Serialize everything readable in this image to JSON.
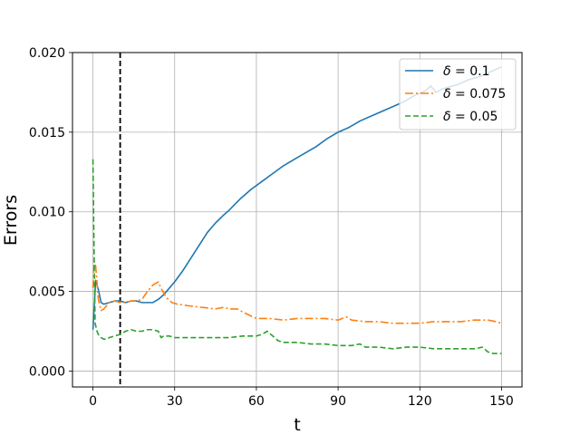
{
  "chart_data": {
    "type": "line",
    "xlabel": "t",
    "ylabel": "Errors",
    "xlim": [
      -7.5,
      157.5
    ],
    "ylim": [
      -0.001,
      0.02
    ],
    "xticks": [
      0,
      30,
      60,
      90,
      120,
      150
    ],
    "xtick_labels": [
      "0",
      "30",
      "60",
      "90",
      "120",
      "150"
    ],
    "yticks": [
      0.0,
      0.005,
      0.01,
      0.015,
      0.02
    ],
    "ytick_labels": [
      "0.000",
      "0.005",
      "0.010",
      "0.015",
      "0.020"
    ],
    "grid": true,
    "legend_position": "top-right",
    "vline_x": 10,
    "series": [
      {
        "name": "δ = 0.1",
        "label_var": "δ",
        "label_val": "0.1",
        "color": "#1f77b4",
        "dash": "solid",
        "x": [
          0,
          1,
          2,
          3,
          4,
          6,
          8,
          10,
          12,
          14,
          16,
          18,
          20,
          22,
          24,
          26,
          28,
          30,
          33,
          36,
          39,
          42,
          45,
          48,
          50,
          54,
          58,
          62,
          66,
          70,
          74,
          78,
          82,
          86,
          90,
          94,
          98,
          102,
          106,
          110,
          114,
          118,
          122,
          124,
          126,
          128,
          130,
          134,
          138,
          142,
          146,
          150
        ],
        "y": [
          0.0026,
          0.0057,
          0.0051,
          0.0043,
          0.0042,
          0.0043,
          0.0044,
          0.0044,
          0.0043,
          0.0044,
          0.0044,
          0.0043,
          0.0043,
          0.0043,
          0.0045,
          0.0048,
          0.0052,
          0.0056,
          0.0063,
          0.0071,
          0.0079,
          0.0087,
          0.0093,
          0.0098,
          0.0101,
          0.0108,
          0.0114,
          0.0119,
          0.0124,
          0.0129,
          0.0133,
          0.0137,
          0.0141,
          0.0146,
          0.015,
          0.0153,
          0.0157,
          0.016,
          0.0163,
          0.0166,
          0.0169,
          0.0173,
          0.0176,
          0.0179,
          0.0175,
          0.0177,
          0.0178,
          0.018,
          0.0183,
          0.0185,
          0.0188,
          0.0191
        ]
      },
      {
        "name": "δ = 0.075",
        "label_var": "δ",
        "label_val": "0.075",
        "color": "#ff7f0e",
        "dash": "dashdot",
        "x": [
          0,
          0.5,
          1,
          2,
          3,
          4,
          6,
          8,
          10,
          12,
          14,
          16,
          18,
          20,
          22,
          24,
          25,
          27,
          29,
          31,
          35,
          40,
          45,
          48,
          50,
          53,
          55,
          60,
          65,
          70,
          75,
          80,
          85,
          90,
          93,
          95,
          100,
          105,
          110,
          115,
          120,
          125,
          130,
          135,
          140,
          145,
          148,
          150
        ],
        "y": [
          0.0052,
          0.0069,
          0.0066,
          0.0045,
          0.0038,
          0.0039,
          0.0043,
          0.0044,
          0.0043,
          0.0043,
          0.0044,
          0.0044,
          0.0045,
          0.005,
          0.0054,
          0.0056,
          0.0052,
          0.0046,
          0.0043,
          0.0042,
          0.0041,
          0.004,
          0.0039,
          0.004,
          0.0039,
          0.0039,
          0.0037,
          0.0033,
          0.0033,
          0.0032,
          0.0033,
          0.0033,
          0.0033,
          0.0032,
          0.0034,
          0.0032,
          0.0031,
          0.0031,
          0.003,
          0.003,
          0.003,
          0.0031,
          0.0031,
          0.0031,
          0.0032,
          0.0032,
          0.0031,
          0.003
        ]
      },
      {
        "name": "δ = 0.05",
        "label_var": "δ",
        "label_val": "0.05",
        "color": "#2ca02c",
        "dash": "dashed",
        "x": [
          0,
          0.3,
          0.8,
          1.5,
          2,
          3,
          4,
          5,
          6,
          8,
          10,
          12,
          14,
          16,
          18,
          20,
          22,
          24,
          25,
          26,
          28,
          30,
          35,
          40,
          45,
          50,
          55,
          60,
          62,
          64,
          66,
          68,
          70,
          75,
          80,
          85,
          90,
          95,
          98,
          100,
          105,
          110,
          115,
          120,
          125,
          130,
          135,
          140,
          143,
          145,
          147,
          150
        ],
        "y": [
          0.0133,
          0.009,
          0.003,
          0.0025,
          0.0023,
          0.0021,
          0.002,
          0.002,
          0.0021,
          0.0022,
          0.0023,
          0.0025,
          0.0026,
          0.0025,
          0.0025,
          0.0026,
          0.0026,
          0.0025,
          0.0021,
          0.0022,
          0.0022,
          0.0021,
          0.0021,
          0.0021,
          0.0021,
          0.0021,
          0.0022,
          0.0022,
          0.0023,
          0.0025,
          0.0022,
          0.0019,
          0.0018,
          0.0018,
          0.0017,
          0.0017,
          0.0016,
          0.0016,
          0.0017,
          0.0015,
          0.0015,
          0.0014,
          0.0015,
          0.0015,
          0.0014,
          0.0014,
          0.0014,
          0.0014,
          0.0015,
          0.0012,
          0.0011,
          0.0011
        ]
      }
    ]
  }
}
